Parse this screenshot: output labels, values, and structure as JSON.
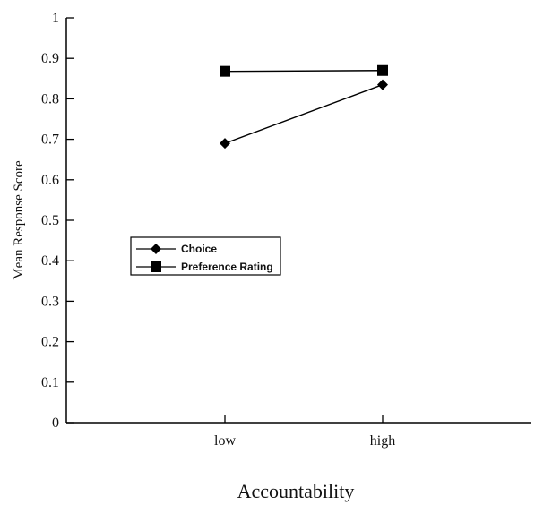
{
  "chart_data": {
    "type": "line",
    "title": "",
    "xlabel": "Accountability",
    "ylabel": "Mean Response Score",
    "categories": [
      "low",
      "high"
    ],
    "ylim": [
      0,
      1
    ],
    "yticks": [
      "0",
      "0.1",
      "0.2",
      "0.3",
      "0.4",
      "0.5",
      "0.6",
      "0.7",
      "0.8",
      "0.9",
      "1"
    ],
    "grid": false,
    "legend_position": "middle-left",
    "series": [
      {
        "name": "Choice",
        "marker": "diamond",
        "values": [
          0.69,
          0.835
        ],
        "color": "#000000"
      },
      {
        "name": "Preference Rating",
        "marker": "square",
        "values": [
          0.868,
          0.87
        ],
        "color": "#000000"
      }
    ]
  }
}
